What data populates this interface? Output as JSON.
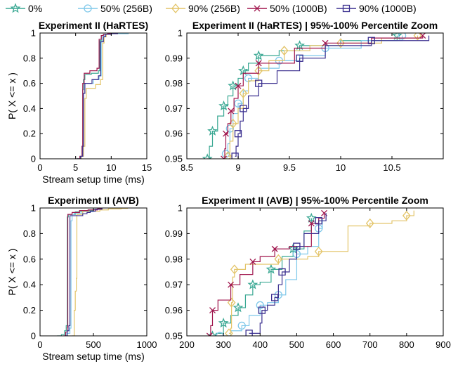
{
  "legend": {
    "placement": "top",
    "entries": [
      {
        "label": "0%",
        "color": "#3aa893",
        "marker": "star"
      },
      {
        "label": "50% (256B)",
        "color": "#7fc8ea",
        "marker": "circle"
      },
      {
        "label": "90% (256B)",
        "color": "#e3c468",
        "marker": "diamond"
      },
      {
        "label": "50% (1000B)",
        "color": "#a0154d",
        "marker": "x"
      },
      {
        "label": "90% (1000B)",
        "color": "#3a2f8f",
        "marker": "square"
      }
    ]
  },
  "chart_data": [
    {
      "id": "p1",
      "type": "line",
      "title": "Experiment II (HaRTES)",
      "xlabel": "Stream setup time (ms)",
      "ylabel": "P( X <= x )",
      "xlim": [
        0,
        15
      ],
      "ylim": [
        0,
        1
      ],
      "xticks": [
        0,
        5,
        10,
        15
      ],
      "yticks": [
        0,
        0.2,
        0.4,
        0.6,
        0.8,
        1
      ],
      "ytick_labels": [
        "0",
        "0.2",
        "0.4",
        "0.6",
        "0.8",
        "1"
      ],
      "grid": false,
      "series": [
        {
          "name": "0%",
          "x": [
            5.1,
            5.6,
            5.9,
            6.0,
            6.1,
            6.3,
            7.2,
            8.2,
            8.4,
            8.6,
            8.9,
            9.5,
            10.0
          ],
          "y": [
            0,
            0.02,
            0.1,
            0.55,
            0.63,
            0.67,
            0.68,
            0.7,
            0.94,
            0.98,
            0.99,
            0.995,
            1
          ]
        },
        {
          "name": "50% (256B)",
          "x": [
            5.2,
            5.7,
            6.0,
            6.1,
            6.3,
            7.5,
            8.3,
            8.6,
            8.8,
            9.0,
            9.8,
            12.4
          ],
          "y": [
            0,
            0.02,
            0.1,
            0.52,
            0.6,
            0.63,
            0.66,
            0.93,
            0.97,
            0.99,
            0.995,
            1
          ]
        },
        {
          "name": "90% (256B)",
          "x": [
            5.3,
            5.8,
            6.1,
            6.3,
            6.5,
            7.8,
            8.5,
            8.8,
            9.0,
            9.3,
            10.0,
            10.5
          ],
          "y": [
            0,
            0.02,
            0.1,
            0.48,
            0.56,
            0.59,
            0.63,
            0.92,
            0.97,
            0.99,
            0.995,
            1
          ]
        },
        {
          "name": "50% (1000B)",
          "x": [
            5.1,
            5.6,
            5.9,
            6.0,
            6.2,
            7.0,
            8.0,
            8.3,
            8.6,
            8.9,
            9.5,
            10.8
          ],
          "y": [
            0,
            0.02,
            0.1,
            0.6,
            0.68,
            0.7,
            0.72,
            0.95,
            0.98,
            0.99,
            0.995,
            1
          ]
        },
        {
          "name": "90% (1000B)",
          "x": [
            5.2,
            5.7,
            6.0,
            6.1,
            6.3,
            7.3,
            8.2,
            8.5,
            8.9,
            9.2,
            10.0,
            10.9
          ],
          "y": [
            0,
            0.02,
            0.1,
            0.52,
            0.6,
            0.63,
            0.66,
            0.93,
            0.97,
            0.99,
            0.995,
            1
          ]
        }
      ]
    },
    {
      "id": "p2",
      "type": "line",
      "title": "Experiment II (HaRTES) | 95%-100% Percentile Zoom",
      "xlabel": "",
      "ylabel": "",
      "xlim": [
        8.5,
        11
      ],
      "ylim": [
        0.95,
        1
      ],
      "xticks": [
        8.5,
        9,
        9.5,
        10,
        10.5
      ],
      "yticks": [
        0.95,
        0.96,
        0.97,
        0.98,
        0.99,
        1
      ],
      "ytick_labels": [
        "0.95",
        "0.96",
        "0.97",
        "0.98",
        "0.99",
        "1"
      ],
      "grid": false,
      "series": [
        {
          "name": "0%",
          "x": [
            8.7,
            8.72,
            8.75,
            8.8,
            8.86,
            8.9,
            8.95,
            9.0,
            9.05,
            9.1,
            9.2,
            9.4,
            9.6,
            10.0,
            10.55
          ],
          "y": [
            0.95,
            0.955,
            0.961,
            0.967,
            0.971,
            0.975,
            0.979,
            0.982,
            0.985,
            0.988,
            0.991,
            0.993,
            0.995,
            0.997,
            0.999
          ]
        },
        {
          "name": "50% (256B)",
          "x": [
            8.88,
            8.9,
            8.92,
            8.95,
            9.0,
            9.05,
            9.1,
            9.2,
            9.4,
            9.6,
            9.85,
            10.2,
            10.6
          ],
          "y": [
            0.952,
            0.956,
            0.962,
            0.968,
            0.972,
            0.977,
            0.982,
            0.986,
            0.989,
            0.991,
            0.994,
            0.997,
            0.999
          ]
        },
        {
          "name": "90% (256B)",
          "x": [
            8.9,
            8.92,
            8.95,
            9.0,
            9.05,
            9.1,
            9.2,
            9.3,
            9.45,
            9.7,
            10.0,
            10.4,
            10.75
          ],
          "y": [
            0.951,
            0.957,
            0.964,
            0.97,
            0.976,
            0.981,
            0.985,
            0.989,
            0.993,
            0.995,
            0.996,
            0.998,
            0.999
          ]
        },
        {
          "name": "50% (1000B)",
          "x": [
            8.86,
            8.87,
            8.88,
            8.9,
            8.93,
            8.96,
            9.0,
            9.05,
            9.2,
            9.55,
            9.85,
            10.3,
            10.8
          ],
          "y": [
            0.95,
            0.954,
            0.96,
            0.964,
            0.969,
            0.974,
            0.979,
            0.984,
            0.988,
            0.994,
            0.996,
            0.998,
            0.999
          ]
        },
        {
          "name": "90% (1000B)",
          "x": [
            8.97,
            8.98,
            9.0,
            9.02,
            9.05,
            9.1,
            9.2,
            9.38,
            9.6,
            9.85,
            10.3,
            10.86
          ],
          "y": [
            0.951,
            0.955,
            0.96,
            0.965,
            0.97,
            0.975,
            0.98,
            0.985,
            0.99,
            0.995,
            0.997,
            0.999
          ]
        }
      ]
    },
    {
      "id": "p3",
      "type": "line",
      "title": "Experiment II (AVB)",
      "xlabel": "Stream setup time (ms)",
      "ylabel": "P( X <= x )",
      "xlim": [
        0,
        1000
      ],
      "ylim": [
        0,
        1
      ],
      "xticks": [
        0,
        500,
        1000
      ],
      "yticks": [
        0,
        0.2,
        0.4,
        0.6,
        0.8,
        1
      ],
      "ytick_labels": [
        "0",
        "0.2",
        "0.4",
        "0.6",
        "0.8",
        "1"
      ],
      "grid": false,
      "series": [
        {
          "name": "0%",
          "x": [
            160,
            200,
            230,
            245,
            255,
            265,
            330,
            400,
            500,
            560
          ],
          "y": [
            0,
            0.01,
            0.04,
            0.08,
            0.93,
            0.95,
            0.97,
            0.98,
            0.99,
            1
          ]
        },
        {
          "name": "50% (256B)",
          "x": [
            200,
            250,
            280,
            290,
            300,
            320,
            400,
            500,
            570
          ],
          "y": [
            0,
            0.02,
            0.06,
            0.9,
            0.95,
            0.96,
            0.97,
            0.99,
            1
          ]
        },
        {
          "name": "90% (256B)",
          "x": [
            300,
            320,
            330,
            340,
            345,
            400,
            560,
            640,
            760,
            820
          ],
          "y": [
            0,
            0.2,
            0.35,
            0.45,
            0.95,
            0.975,
            0.985,
            0.993,
            0.997,
            1
          ]
        },
        {
          "name": "50% (1000B)",
          "x": [
            220,
            240,
            255,
            260,
            300,
            370,
            450,
            540,
            580
          ],
          "y": [
            0,
            0.03,
            0.07,
            0.95,
            0.965,
            0.98,
            0.985,
            0.995,
            1
          ]
        },
        {
          "name": "90% (1000B)",
          "x": [
            230,
            255,
            270,
            280,
            400,
            440,
            470,
            520,
            580
          ],
          "y": [
            0,
            0.04,
            0.08,
            0.94,
            0.955,
            0.965,
            0.975,
            0.99,
            1
          ]
        }
      ]
    },
    {
      "id": "p4",
      "type": "line",
      "title": "Experiment II (AVB) | 95%-100% Percentile Zoom",
      "xlabel": "",
      "ylabel": "",
      "xlim": [
        200,
        900
      ],
      "ylim": [
        0.95,
        1
      ],
      "xticks": [
        200,
        300,
        400,
        500,
        600,
        700,
        800,
        900
      ],
      "yticks": [
        0.95,
        0.96,
        0.97,
        0.98,
        0.99,
        1
      ],
      "ytick_labels": [
        "0.95",
        "0.96",
        "0.97",
        "0.98",
        "0.99",
        "1"
      ],
      "grid": false,
      "series": [
        {
          "name": "0%",
          "x": [
            270,
            280,
            300,
            320,
            340,
            360,
            380,
            400,
            430,
            460,
            490,
            520,
            540
          ],
          "y": [
            0.95,
            0.951,
            0.955,
            0.958,
            0.961,
            0.966,
            0.97,
            0.971,
            0.976,
            0.981,
            0.984,
            0.991,
            0.996
          ]
        },
        {
          "name": "50% (256B)",
          "x": [
            290,
            320,
            350,
            370,
            400,
            420,
            450,
            470,
            500,
            530,
            560,
            570
          ],
          "y": [
            0.95,
            0.952,
            0.954,
            0.958,
            0.962,
            0.963,
            0.966,
            0.972,
            0.982,
            0.985,
            0.992,
            0.996
          ]
        },
        {
          "name": "90% (256B)",
          "x": [
            315,
            320,
            322,
            325,
            330,
            360,
            450,
            530,
            560,
            640,
            700,
            760,
            800,
            820
          ],
          "y": [
            0.951,
            0.953,
            0.963,
            0.973,
            0.976,
            0.978,
            0.98,
            0.981,
            0.983,
            0.993,
            0.994,
            0.995,
            0.997,
            0.999
          ]
        },
        {
          "name": "50% (1000B)",
          "x": [
            262,
            265,
            270,
            285,
            320,
            345,
            380,
            400,
            440,
            480,
            540,
            560,
            575
          ],
          "y": [
            0.95,
            0.954,
            0.96,
            0.964,
            0.97,
            0.974,
            0.979,
            0.981,
            0.984,
            0.985,
            0.994,
            0.996,
            0.998
          ]
        },
        {
          "name": "90% (1000B)",
          "x": [
            370,
            400,
            405,
            420,
            440,
            450,
            460,
            480,
            500,
            520,
            560,
            580
          ],
          "y": [
            0.951,
            0.955,
            0.96,
            0.962,
            0.965,
            0.97,
            0.975,
            0.98,
            0.985,
            0.99,
            0.995,
            0.998
          ]
        }
      ]
    }
  ]
}
